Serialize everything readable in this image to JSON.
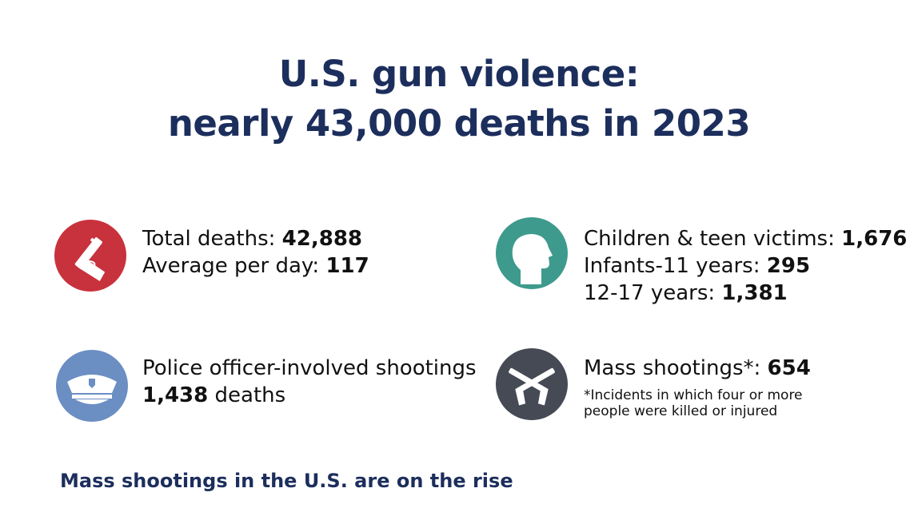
{
  "title": {
    "line1": "U.S. gun violence:",
    "line2": "nearly 43,000 deaths in 2023"
  },
  "stats": {
    "total": {
      "label1": "Total deaths: ",
      "value1": "42,888",
      "label2": "Average per day: ",
      "value2": "117",
      "icon": "handgun-icon",
      "color": "#c8323c"
    },
    "children": {
      "label1": "Children & teen victims: ",
      "value1": "1,676",
      "label2": "Infants-11 years: ",
      "value2": "295",
      "label3": "12-17 years: ",
      "value3": "1,381",
      "icon": "child-head-icon",
      "color": "#3e9a8c"
    },
    "police": {
      "line1": "Police officer-involved shootings",
      "value": "1,438",
      "label": " deaths",
      "icon": "police-cap-icon",
      "color": "#6b8ec3"
    },
    "mass": {
      "label": "Mass shootings*: ",
      "value": "654",
      "note1": "*Incidents in which four or more",
      "note2": "people were killed or injured",
      "icon": "crossed-pistols-icon",
      "color": "#454a55"
    }
  },
  "subheading": "Mass shootings in the U.S. are on the rise"
}
